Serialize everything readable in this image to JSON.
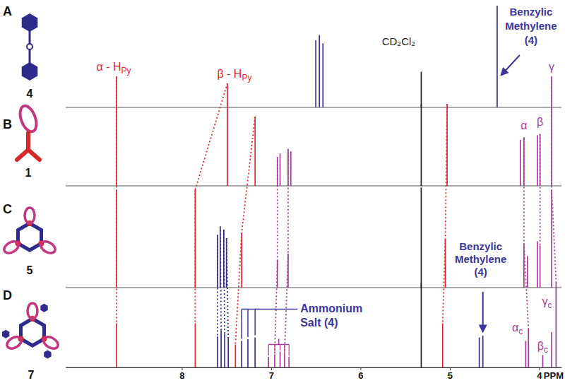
{
  "chart_data": {
    "type": "spectrum",
    "x_label": "PPM",
    "xlim": [
      9.3,
      3.75
    ],
    "xticks": [
      8,
      7,
      6,
      5,
      4
    ],
    "ylim": [
      0,
      100
    ],
    "tick_labels": "x",
    "grid": false,
    "series": [
      {
        "name": "A",
        "compound": "4",
        "x": [
          6.5,
          6.46,
          6.42,
          5.32,
          4.47
        ],
        "values": [
          66,
          71,
          63,
          35,
          100
        ],
        "colors": [
          "#34318f",
          "#34318f",
          "#34318f",
          "#222222",
          "#34318f"
        ]
      },
      {
        "name": "B",
        "compound": "1",
        "x": [
          8.73,
          7.49,
          7.18,
          6.93,
          6.9,
          6.81,
          6.78,
          5.32,
          5.03,
          4.21,
          4.17,
          4.02,
          3.99,
          3.86
        ],
        "values": [
          95,
          89,
          60,
          25,
          28,
          32,
          30,
          71,
          71,
          40,
          42,
          44,
          45,
          95
        ],
        "colors": [
          "#e3262b",
          "#e3262b",
          "#e3262b",
          "#a13c98",
          "#a13c98",
          "#a13c98",
          "#a13c98",
          "#222222",
          "#e3262b",
          "#a13c98",
          "#a13c98",
          "#a13c98",
          "#a13c98",
          "#a13c98"
        ]
      },
      {
        "name": "C",
        "compound": "5",
        "x": [
          8.73,
          7.85,
          7.6,
          7.57,
          7.53,
          7.5,
          7.33,
          6.93,
          6.81,
          5.32,
          5.05,
          4.17,
          4.13,
          4.02,
          3.99,
          3.86
        ],
        "values": [
          93,
          93,
          50,
          58,
          55,
          47,
          52,
          26,
          32,
          95,
          46,
          42,
          30,
          44,
          40,
          93
        ],
        "colors": [
          "#e3262b",
          "#e3262b",
          "#34318f",
          "#34318f",
          "#34318f",
          "#34318f",
          "#e3262b",
          "#a13c98",
          "#a13c98",
          "#222222",
          "#e3262b",
          "#a13c98",
          "#a13c98",
          "#a13c98",
          "#a13c98",
          "#a13c98"
        ]
      },
      {
        "name": "D",
        "compound": "7",
        "x": [
          8.73,
          7.85,
          7.6,
          7.56,
          7.52,
          7.48,
          7.4,
          7.33,
          7.26,
          7.18,
          7.03,
          6.96,
          6.9,
          6.85,
          6.8,
          5.32,
          5.08,
          4.67,
          4.63,
          4.15,
          4.12,
          3.96,
          3.86,
          3.81
        ],
        "values": [
          50,
          50,
          35,
          42,
          38,
          33,
          26,
          30,
          32,
          34,
          12,
          15,
          18,
          15,
          12,
          96,
          50,
          34,
          36,
          30,
          44,
          14,
          40,
          97
        ],
        "colors": [
          "#e3262b",
          "#e3262b",
          "#34318f",
          "#34318f",
          "#34318f",
          "#34318f",
          "#e3262b",
          "#34318f",
          "#34318f",
          "#34318f",
          "#a13c98",
          "#a13c98",
          "#a13c98",
          "#a13c98",
          "#a13c98",
          "#222222",
          "#e3262b",
          "#34318f",
          "#34318f",
          "#a13c98",
          "#a13c98",
          "#a13c98",
          "#a13c98",
          "#a13c98"
        ]
      }
    ],
    "annotations": [
      {
        "series": 0,
        "peaks": [
          4
        ],
        "text": [
          "Benzylic",
          "Methylene",
          "(4)"
        ],
        "color": "#3b369e"
      },
      {
        "series": 0,
        "peaks": [
          3
        ],
        "text": [
          "CD₂Cl₂"
        ],
        "color": "#222222"
      },
      {
        "series": 1,
        "peaks": [
          0
        ],
        "text": [
          "α - H"
        ],
        "sub": "Py",
        "color": "#e3262b"
      },
      {
        "series": 1,
        "peaks": [
          1
        ],
        "text": [
          "β - H"
        ],
        "sub": "Py",
        "color": "#e3262b"
      },
      {
        "series": 1,
        "peaks": [
          10
        ],
        "text": [
          "α"
        ],
        "color": "#a13c98"
      },
      {
        "series": 1,
        "peaks": [
          12
        ],
        "text": [
          "β"
        ],
        "color": "#a13c98"
      },
      {
        "series": 1,
        "peaks": [
          13
        ],
        "text": [
          "γ"
        ],
        "color": "#a13c98"
      },
      {
        "series": 3,
        "peaks": [
          7,
          8,
          9
        ],
        "text": [
          "Ammonium",
          "Salt (4)"
        ],
        "color": "#3b369e"
      },
      {
        "series": 3,
        "peaks": [
          18
        ],
        "text": [
          "Benzylic",
          "Methylene",
          "(4)"
        ],
        "color": "#3b369e"
      },
      {
        "series": 3,
        "peaks": [
          20
        ],
        "text": [
          "α"
        ],
        "sub": "c",
        "color": "#a13c98"
      },
      {
        "series": 3,
        "peaks": [
          21
        ],
        "text": [
          "β"
        ],
        "sub": "c",
        "color": "#a13c98"
      },
      {
        "series": 3,
        "peaks": [
          23
        ],
        "text": [
          "γ"
        ],
        "sub": "c",
        "color": "#a13c98"
      }
    ]
  }
}
